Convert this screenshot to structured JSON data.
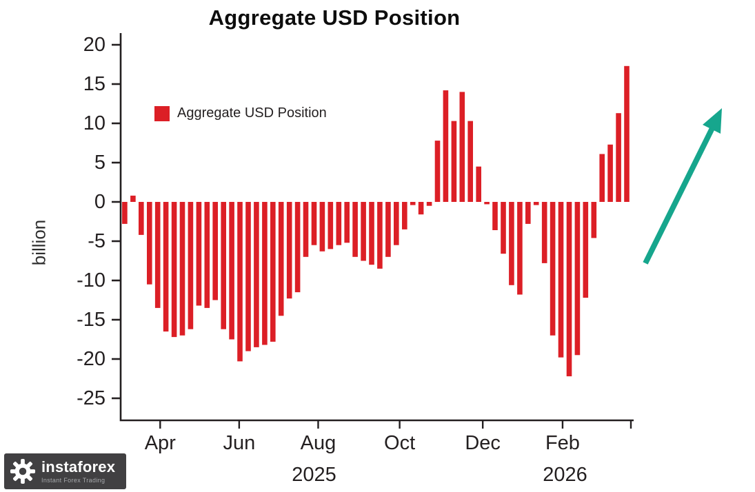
{
  "title": "Aggregate USD Position",
  "legend": {
    "label": "Aggregate USD Position"
  },
  "y_axis_label": "billion",
  "watermark": {
    "name": "instaforex",
    "tagline": "Instant Forex Trading"
  },
  "colors": {
    "bar": "#dc1f26",
    "arrow": "#16a68d",
    "axis": "#231f20",
    "text": "#231f20",
    "logo_bg": "#414042",
    "logo_tagline": "#a7a9ac"
  },
  "chart_data": {
    "type": "bar",
    "title": "Aggregate USD Position",
    "ylabel": "billion",
    "series_name": "Aggregate USD Position",
    "x_unit": "weekly (Mar 2025 - Mar 2026)",
    "ylim": [
      -27,
      22
    ],
    "yticks": [
      20,
      15,
      10,
      5,
      0,
      -5,
      -10,
      -15,
      -20,
      -25
    ],
    "grid": false,
    "legend_position": "upper-left-inside",
    "values": [
      -2.8,
      0.8,
      -4.2,
      -10.5,
      -13.5,
      -16.5,
      -17.2,
      -17.0,
      -16.2,
      -13.2,
      -13.5,
      -12.5,
      -16.2,
      -17.5,
      -20.3,
      -19.0,
      -18.5,
      -18.2,
      -17.8,
      -14.5,
      -12.3,
      -11.5,
      -7.0,
      -5.5,
      -6.3,
      -6.0,
      -5.5,
      -5.2,
      -7.0,
      -7.5,
      -8.0,
      -8.5,
      -7.0,
      -5.5,
      -3.5,
      -0.4,
      -1.6,
      -0.5,
      7.8,
      14.2,
      10.3,
      14.0,
      10.3,
      4.5,
      -0.3,
      -3.6,
      -6.6,
      -10.6,
      -11.8,
      -2.8,
      -0.4,
      -7.8,
      -17.0,
      -19.8,
      -22.2,
      -19.5,
      -12.2,
      -4.6,
      6.1,
      7.3,
      11.3,
      17.3
    ],
    "x_ticks": [
      {
        "label": "Apr",
        "bar": 4.8
      },
      {
        "label": "Jun",
        "bar": 14.4
      },
      {
        "label": "Aug",
        "bar": 24.0
      },
      {
        "label": "Oct",
        "bar": 33.9
      },
      {
        "label": "Dec",
        "bar": 44.0
      },
      {
        "label": "Feb",
        "bar": 53.7
      }
    ],
    "year_labels": [
      {
        "label": "2025",
        "bar": 23.5
      },
      {
        "label": "2026",
        "bar": 54.0
      }
    ]
  }
}
